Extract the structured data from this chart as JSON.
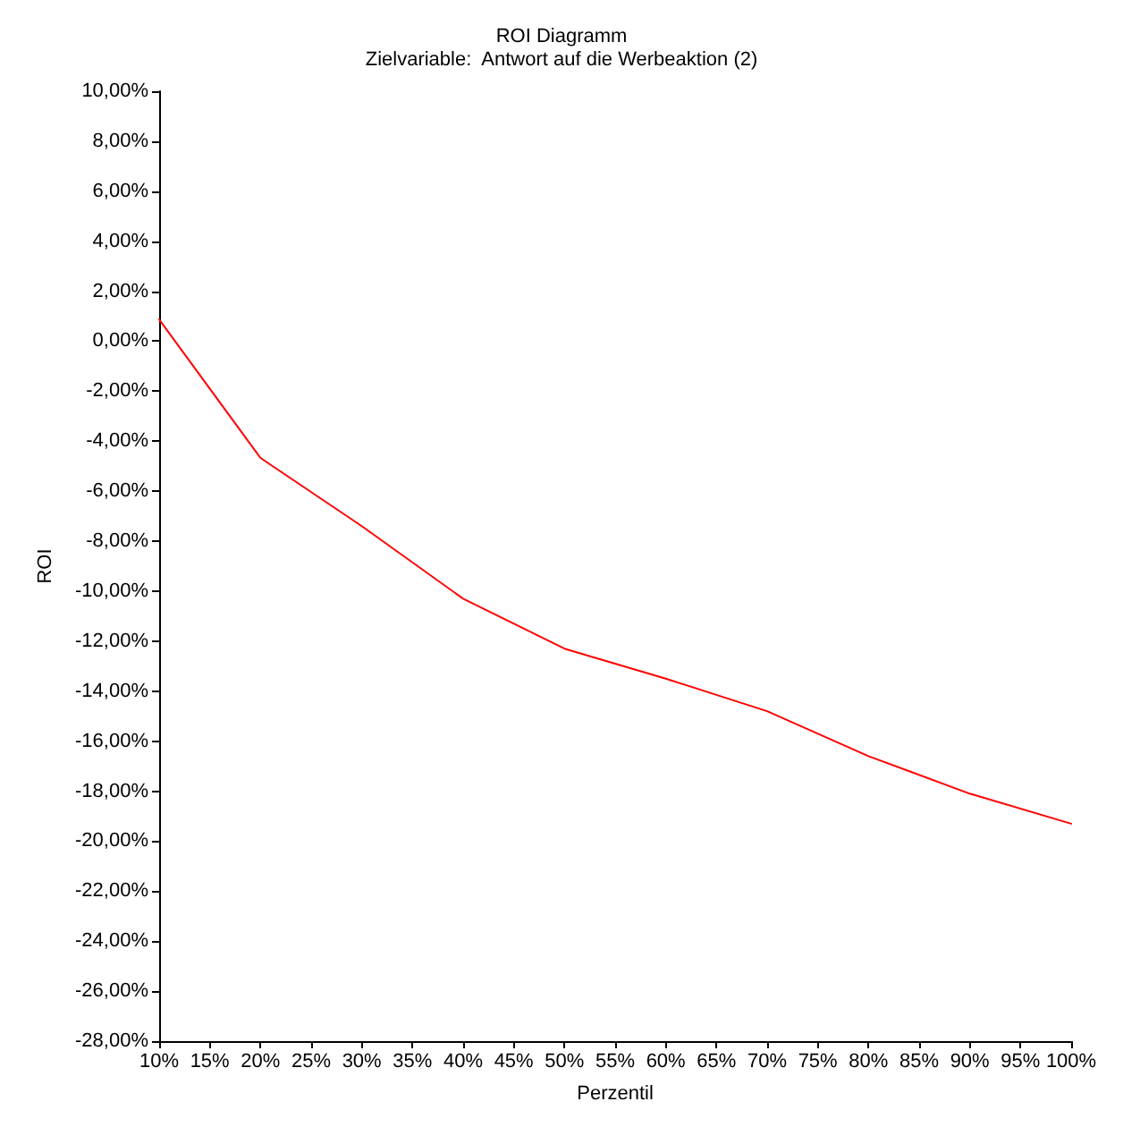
{
  "chart_data": {
    "type": "line",
    "title": "ROI Diagramm",
    "subtitle": "Zielvariable:  Antwort auf die Werbeaktion (2)",
    "xlabel": "Perzentil",
    "ylabel": "ROI",
    "x": [
      10,
      20,
      30,
      40,
      50,
      60,
      70,
      80,
      90,
      100
    ],
    "series": [
      {
        "color": "#ff0000",
        "values": [
          0.87,
          -4.67,
          -7.4,
          -10.3,
          -12.3,
          -13.5,
          -14.8,
          -16.6,
          -18.1,
          -19.3
        ]
      }
    ],
    "xlim": [
      10,
      100
    ],
    "xticks": [
      {
        "value": 10,
        "label": "10%"
      },
      {
        "value": 15,
        "label": "15%"
      },
      {
        "value": 20,
        "label": "20%"
      },
      {
        "value": 25,
        "label": "25%"
      },
      {
        "value": 30,
        "label": "30%"
      },
      {
        "value": 35,
        "label": "35%"
      },
      {
        "value": 40,
        "label": "40%"
      },
      {
        "value": 45,
        "label": "45%"
      },
      {
        "value": 50,
        "label": "50%"
      },
      {
        "value": 55,
        "label": "55%"
      },
      {
        "value": 60,
        "label": "60%"
      },
      {
        "value": 65,
        "label": "65%"
      },
      {
        "value": 70,
        "label": "70%"
      },
      {
        "value": 75,
        "label": "75%"
      },
      {
        "value": 80,
        "label": "80%"
      },
      {
        "value": 85,
        "label": "85%"
      },
      {
        "value": 90,
        "label": "90%"
      },
      {
        "value": 95,
        "label": "95%"
      },
      {
        "value": 100,
        "label": "100%"
      }
    ],
    "ylim": [
      -28,
      10
    ],
    "yticks": [
      {
        "value": -28,
        "label": "-28,00%"
      },
      {
        "value": -26,
        "label": "-26,00%"
      },
      {
        "value": -24,
        "label": "-24,00%"
      },
      {
        "value": -22,
        "label": "-22,00%"
      },
      {
        "value": -20,
        "label": "-20,00%"
      },
      {
        "value": -18,
        "label": "-18,00%"
      },
      {
        "value": -16,
        "label": "-16,00%"
      },
      {
        "value": -14,
        "label": "-14,00%"
      },
      {
        "value": -12,
        "label": "-12,00%"
      },
      {
        "value": -10,
        "label": "-10,00%"
      },
      {
        "value": -8,
        "label": "-8,00%"
      },
      {
        "value": -6,
        "label": "-6,00%"
      },
      {
        "value": -4,
        "label": "-4,00%"
      },
      {
        "value": -2,
        "label": "-2,00%"
      },
      {
        "value": 0,
        "label": "0,00%"
      },
      {
        "value": 2,
        "label": "2,00%"
      },
      {
        "value": 4,
        "label": "4,00%"
      },
      {
        "value": 6,
        "label": "6,00%"
      },
      {
        "value": 8,
        "label": "8,00%"
      },
      {
        "value": 10,
        "label": "10,00%"
      }
    ],
    "marker": "none",
    "line_style": "solid"
  }
}
